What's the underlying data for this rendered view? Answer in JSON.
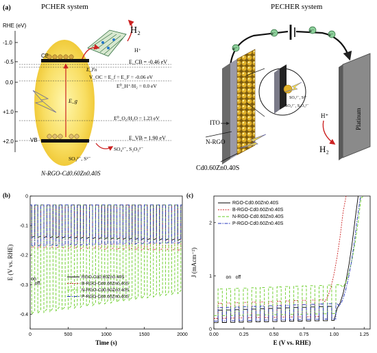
{
  "panel_a": {
    "panel_label": "(a)",
    "pcher_title": "PCHER system",
    "pecher_title": "PECHER system",
    "rhe_axis_label": "RHE (eV)",
    "rhe_ticks": [
      "-1.0",
      "-0.5",
      "0.0",
      "+1.0",
      "+2.0"
    ],
    "h2": "H₂",
    "h_plus": "H⁺",
    "cb_label": "CB",
    "vb_label": "VB",
    "efn_label": "E_Fn",
    "eg_label": "E_g",
    "ecb_value": "E_CB = -0.46 eV",
    "voc_text": "V_OC = E_f = E_F = -0.06 eV",
    "eh_h2_text": "E⁰_H⁺/H₂ = 0.0 eV",
    "eo2_text": "E⁰_O₂/H₂O = 1.23 eV",
    "evb_value": "E_VB = 1.90 eV",
    "sacrificial_top": "SO₄²⁻, S₂O₃²⁻",
    "sacrificial_bottom": "SO₃²⁻, S²⁻",
    "material_label": "N-RGO-Cd0.60Zn0.40S",
    "electron_symbol": "e⁻",
    "ito_label": "ITO",
    "nrgo_label": "N-RGO",
    "cdzns_label": "Cd0.60Zn0.40S",
    "inset_so3": "SO₃²⁻, S²⁻",
    "inset_so4": "SO₄²⁻, S₂O₃²⁻",
    "pecher_h_plus": "H⁺",
    "pecher_h2": "H₂",
    "platinum_label": "Platinum"
  },
  "chart_data": [
    {
      "type": "line",
      "panel_label": "(b)",
      "xlabel": "Time (s)",
      "ylabel": "E (V vs. RHE)",
      "xlim": [
        0,
        2000
      ],
      "ylim": [
        -0.45,
        0.0
      ],
      "xticks": [
        0,
        500,
        1000,
        1500,
        2000
      ],
      "yticks": [
        0.0,
        -0.1,
        -0.2,
        -0.3,
        -0.4
      ],
      "annotation_on": "on",
      "annotation_off": "off",
      "period_s": 80,
      "cycles": 25,
      "series": [
        {
          "name": "RGO-Cd0.60Zn0.40S",
          "color": "#000000",
          "dash": "",
          "base": -0.03,
          "light_start": -0.14,
          "light_end": -0.15
        },
        {
          "name": "B-RGO-Cd0.60Zn0.40S",
          "color": "#cc2222",
          "dash": "2,1.5",
          "base": -0.03,
          "light_start": -0.175,
          "light_end": -0.185
        },
        {
          "name": "N-RGO-Cd0.60Zn0.40S",
          "color": "#66cc22",
          "dash": "4,2",
          "base": -0.03,
          "light_start": -0.4,
          "light_end": -0.33
        },
        {
          "name": "P-RGO-Cd0.60Zn0.40S",
          "color": "#2233bb",
          "dash": "5,1.5,1.5,1.5",
          "base": -0.03,
          "light_start": -0.17,
          "light_end": -0.16
        }
      ]
    },
    {
      "type": "line",
      "panel_label": "(c)",
      "xlabel": "E (V vs. RHE)",
      "ylabel": "J (mAcm⁻²)",
      "xlim": [
        0,
        1.3
      ],
      "ylim": [
        0,
        2.5
      ],
      "xticks": [
        0.0,
        0.25,
        0.5,
        0.75,
        1.0,
        1.25
      ],
      "yticks": [
        0,
        1,
        2
      ],
      "annotation_on": "on",
      "annotation_off": "off",
      "chop_period_V": 0.07,
      "series": [
        {
          "name": "RGO-Cd0.60Zn0.40S",
          "color": "#000000",
          "dash": "",
          "dark": 0.12,
          "light": 0.35,
          "onset_V": 1.0
        },
        {
          "name": "B-RGO-Cd0.60Zn0.40S",
          "color": "#cc2222",
          "dash": "2,1.5",
          "dark": 0.2,
          "light": 0.48,
          "onset_V": 0.9
        },
        {
          "name": "N-RGO-Cd0.60Zn0.40S",
          "color": "#66cc22",
          "dash": "4,2",
          "dark": 0.25,
          "light": 0.75,
          "onset_V": 1.05
        },
        {
          "name": "P-RGO-Cd0.60Zn0.40S",
          "color": "#2233bb",
          "dash": "5,1.5,1.5,1.5",
          "dark": 0.15,
          "light": 0.4,
          "onset_V": 1.02
        }
      ]
    }
  ]
}
